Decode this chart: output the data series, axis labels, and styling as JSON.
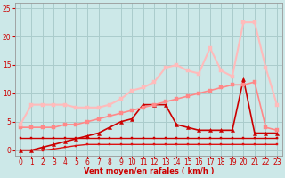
{
  "xlabel": "Vent moyen/en rafales ( km/h )",
  "xlim": [
    -0.5,
    23.5
  ],
  "ylim": [
    -1,
    26
  ],
  "yticks": [
    0,
    5,
    10,
    15,
    20,
    25
  ],
  "xticks": [
    0,
    1,
    2,
    3,
    4,
    5,
    6,
    7,
    8,
    9,
    10,
    11,
    12,
    13,
    14,
    15,
    16,
    17,
    18,
    19,
    20,
    21,
    22,
    23
  ],
  "bg_color": "#cce8e8",
  "grid_color": "#aacccc",
  "series": [
    {
      "x": [
        0,
        1,
        2,
        3,
        4,
        5,
        6,
        7,
        8,
        9,
        10,
        11,
        12,
        13,
        14,
        15,
        16,
        17,
        18,
        19,
        20,
        21,
        22,
        23
      ],
      "y": [
        2.2,
        2.2,
        2.2,
        2.2,
        2.2,
        2.2,
        2.2,
        2.2,
        2.2,
        2.2,
        2.2,
        2.2,
        2.2,
        2.2,
        2.2,
        2.2,
        2.2,
        2.2,
        2.2,
        2.2,
        2.2,
        2.2,
        2.2,
        2.2
      ],
      "color": "#cc0000",
      "lw": 1.0,
      "marker": "s",
      "ms": 2.0
    },
    {
      "x": [
        0,
        1,
        2,
        3,
        4,
        5,
        6,
        7,
        8,
        9,
        10,
        11,
        12,
        13,
        14,
        15,
        16,
        17,
        18,
        19,
        20,
        21,
        22,
        23
      ],
      "y": [
        0.0,
        0.0,
        0.0,
        0.2,
        0.5,
        0.8,
        1.0,
        1.0,
        1.0,
        1.0,
        1.0,
        1.0,
        1.0,
        1.0,
        1.0,
        1.0,
        1.0,
        1.0,
        1.0,
        1.0,
        1.0,
        1.0,
        1.0,
        1.0
      ],
      "color": "#dd1111",
      "lw": 1.0,
      "marker": "s",
      "ms": 2.0
    },
    {
      "x": [
        0,
        1,
        2,
        3,
        4,
        5,
        6,
        7,
        8,
        9,
        10,
        11,
        12,
        13,
        14,
        15,
        16,
        17,
        18,
        19,
        20,
        21,
        22,
        23
      ],
      "y": [
        0.0,
        0.0,
        0.5,
        1.0,
        1.5,
        2.0,
        2.5,
        3.0,
        4.0,
        5.0,
        5.5,
        8.0,
        8.0,
        8.0,
        4.5,
        4.0,
        3.5,
        3.5,
        3.5,
        3.5,
        12.5,
        3.0,
        3.0,
        3.0
      ],
      "color": "#cc0000",
      "lw": 1.2,
      "marker": "^",
      "ms": 3.0
    },
    {
      "x": [
        0,
        1,
        2,
        3,
        4,
        5,
        6,
        7,
        8,
        9,
        10,
        11,
        12,
        13,
        14,
        15,
        16,
        17,
        18,
        19,
        20,
        21,
        22,
        23
      ],
      "y": [
        4.0,
        4.0,
        4.0,
        4.0,
        4.5,
        4.5,
        5.0,
        5.5,
        6.0,
        6.5,
        7.0,
        7.5,
        8.0,
        8.5,
        9.0,
        9.5,
        10.0,
        10.5,
        11.0,
        11.5,
        11.5,
        12.0,
        4.0,
        3.5
      ],
      "color": "#ff8888",
      "lw": 1.2,
      "marker": "s",
      "ms": 2.5
    },
    {
      "x": [
        0,
        1,
        2,
        3,
        4,
        5,
        6,
        7,
        8,
        9,
        10,
        11,
        12,
        13,
        14,
        15,
        16,
        17,
        18,
        19,
        20,
        21,
        22,
        23
      ],
      "y": [
        4.5,
        8.0,
        8.0,
        8.0,
        8.0,
        7.5,
        7.5,
        7.5,
        8.0,
        9.0,
        10.5,
        11.0,
        12.0,
        14.5,
        15.0,
        14.0,
        13.5,
        18.0,
        14.0,
        13.0,
        22.5,
        22.5,
        14.5,
        8.0
      ],
      "color": "#ffbbbb",
      "lw": 1.5,
      "marker": "s",
      "ms": 3.0
    }
  ]
}
